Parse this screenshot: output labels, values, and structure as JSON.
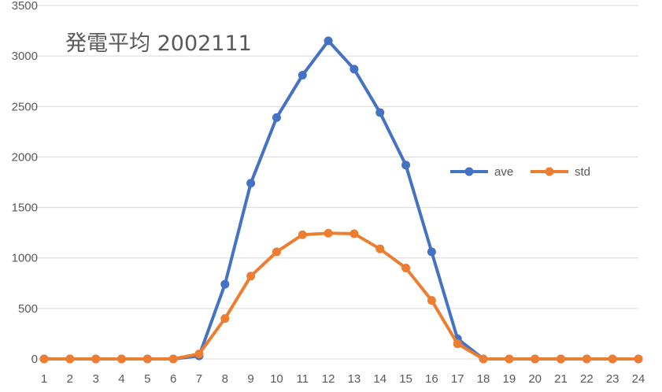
{
  "chart_data": {
    "type": "line",
    "title": "発電平均 2002111",
    "xlabel": "",
    "ylabel": "",
    "x": [
      1,
      2,
      3,
      4,
      5,
      6,
      7,
      8,
      9,
      10,
      11,
      12,
      13,
      14,
      15,
      16,
      17,
      18,
      19,
      20,
      21,
      22,
      23,
      24
    ],
    "ylim": [
      0,
      3500
    ],
    "yticks": [
      0,
      500,
      1000,
      1500,
      2000,
      2500,
      3000,
      3500
    ],
    "grid": true,
    "legend_position": "right",
    "series": [
      {
        "name": "ave",
        "color": "#4472C4",
        "values": [
          0,
          0,
          0,
          0,
          0,
          0,
          30,
          740,
          1740,
          2390,
          2810,
          3150,
          2870,
          2440,
          1920,
          1060,
          200,
          0,
          0,
          0,
          0,
          0,
          0,
          0
        ]
      },
      {
        "name": "std",
        "color": "#ED7D31",
        "values": [
          0,
          0,
          0,
          0,
          0,
          0,
          50,
          400,
          820,
          1060,
          1230,
          1245,
          1240,
          1090,
          900,
          580,
          150,
          0,
          0,
          0,
          0,
          0,
          0,
          0
        ]
      }
    ]
  }
}
